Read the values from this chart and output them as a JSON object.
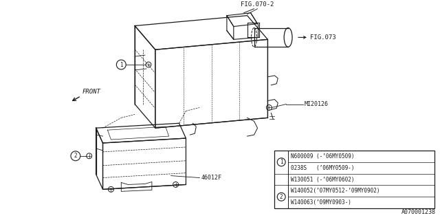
{
  "bg_color": "#ffffff",
  "fig_label_top": "FIG.070-2",
  "fig_label_right": "FIG.073",
  "fig_label_bottom_right": "A070001238",
  "part_label_mi": "MI20126",
  "part_label_46": "46012F",
  "front_label": "FRONT",
  "table_rows": [
    {
      "circle": 1,
      "text": "N600009 (-’06MY0509)"
    },
    {
      "circle": 1,
      "text": "0238S   (’06MY0509-)"
    },
    {
      "circle": null,
      "text": "W130051 (-’06MY0602)"
    },
    {
      "circle": 2,
      "text": "W140052(’07MY0512-’09MY0902)"
    },
    {
      "circle": 2,
      "text": "W140063(’09MY0903-)"
    }
  ],
  "line_color": "#1a1a1a"
}
